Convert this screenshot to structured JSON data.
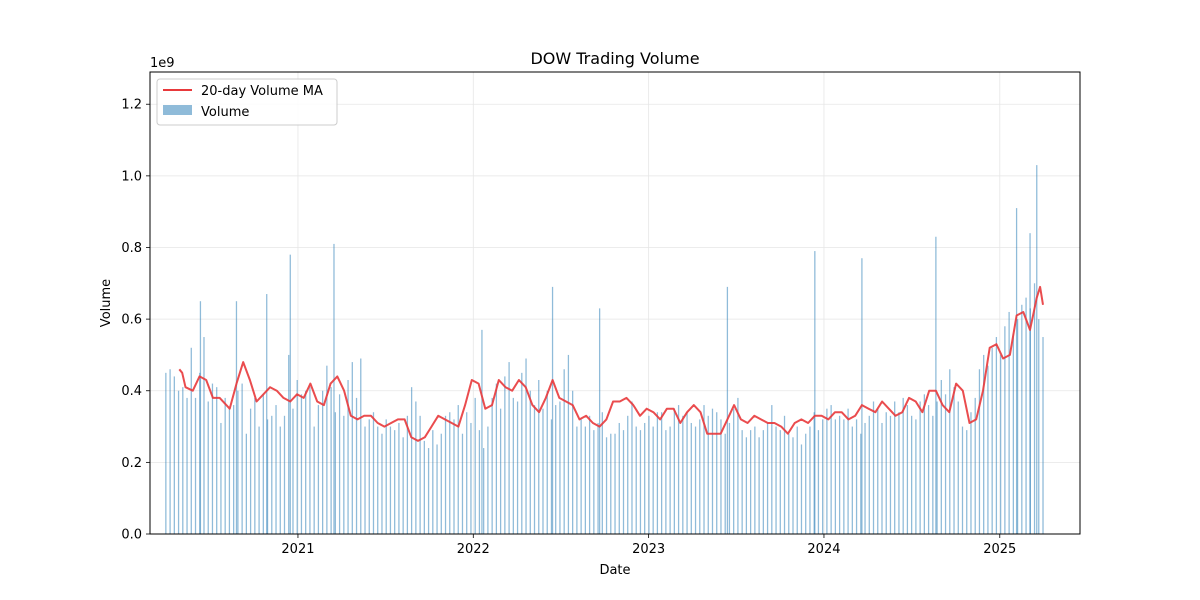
{
  "chart_data": {
    "type": "bar",
    "title": "DOW Trading Volume",
    "xlabel": "Date",
    "ylabel": "Volume",
    "y_offset_label": "1e9",
    "x_tick_labels": [
      "2021",
      "2022",
      "2023",
      "2024",
      "2025"
    ],
    "y_tick_labels": [
      "0.0",
      "0.2",
      "0.4",
      "0.6",
      "0.8",
      "1.0",
      "1.2"
    ],
    "xlim": [
      "2020-02-28",
      "2025-06-17"
    ],
    "ylim": [
      0,
      1.29
    ],
    "grid": true,
    "legend_position": "top-left",
    "colors": {
      "bars": "#1f77b4",
      "ma_line": "#e8393b"
    },
    "series": [
      {
        "name": "Volume",
        "kind": "bar",
        "x_start": "2020-04-01",
        "x_end": "2025-04-01",
        "values_1e9": [
          0.45,
          0.46,
          0.44,
          0.4,
          0.41,
          0.38,
          0.52,
          0.38,
          0.45,
          0.55,
          0.37,
          0.42,
          0.41,
          0.31,
          0.38,
          0.35,
          0.36,
          0.4,
          0.42,
          0.28,
          0.35,
          0.38,
          0.3,
          0.39,
          0.32,
          0.33,
          0.36,
          0.3,
          0.33,
          0.5,
          0.35,
          0.43,
          0.39,
          0.4,
          0.41,
          0.3,
          0.36,
          0.4,
          0.47,
          0.41,
          0.34,
          0.39,
          0.33,
          0.43,
          0.48,
          0.38,
          0.49,
          0.3,
          0.32,
          0.34,
          0.3,
          0.28,
          0.32,
          0.3,
          0.29,
          0.31,
          0.27,
          0.33,
          0.41,
          0.37,
          0.33,
          0.26,
          0.24,
          0.29,
          0.25,
          0.28,
          0.33,
          0.34,
          0.32,
          0.36,
          0.28,
          0.34,
          0.31,
          0.38,
          0.29,
          0.24,
          0.3,
          0.38,
          0.42,
          0.35,
          0.44,
          0.48,
          0.38,
          0.37,
          0.45,
          0.49,
          0.4,
          0.36,
          0.43,
          0.35,
          0.4,
          0.32,
          0.36,
          0.37,
          0.46,
          0.5,
          0.4,
          0.3,
          0.32,
          0.3,
          0.33,
          0.29,
          0.31,
          0.34,
          0.27,
          0.28,
          0.28,
          0.31,
          0.29,
          0.33,
          0.37,
          0.3,
          0.29,
          0.31,
          0.33,
          0.3,
          0.34,
          0.34,
          0.29,
          0.3,
          0.35,
          0.36,
          0.33,
          0.34,
          0.31,
          0.3,
          0.32,
          0.36,
          0.33,
          0.35,
          0.34,
          0.32,
          0.28,
          0.31,
          0.35,
          0.38,
          0.29,
          0.27,
          0.29,
          0.3,
          0.27,
          0.29,
          0.31,
          0.36,
          0.3,
          0.29,
          0.33,
          0.28,
          0.27,
          0.3,
          0.25,
          0.28,
          0.3,
          0.34,
          0.29,
          0.32,
          0.35,
          0.36,
          0.32,
          0.33,
          0.32,
          0.35,
          0.3,
          0.32,
          0.28,
          0.31,
          0.33,
          0.37,
          0.35,
          0.31,
          0.34,
          0.33,
          0.37,
          0.34,
          0.38,
          0.36,
          0.33,
          0.32,
          0.37,
          0.39,
          0.36,
          0.33,
          0.37,
          0.43,
          0.39,
          0.46,
          0.41,
          0.37,
          0.3,
          0.29,
          0.34,
          0.38,
          0.46,
          0.5,
          0.47,
          0.52,
          0.55,
          0.5,
          0.58,
          0.62,
          0.56,
          0.6,
          0.64,
          0.66,
          0.63,
          0.7,
          0.6,
          0.55
        ]
      },
      {
        "name": "20-day Volume MA",
        "kind": "line",
        "points": [
          [
            "2020-04-29",
            0.46
          ],
          [
            "2020-05-05",
            0.45
          ],
          [
            "2020-05-12",
            0.41
          ],
          [
            "2020-05-27",
            0.4
          ],
          [
            "2020-06-10",
            0.44
          ],
          [
            "2020-06-24",
            0.43
          ],
          [
            "2020-07-08",
            0.38
          ],
          [
            "2020-07-22",
            0.38
          ],
          [
            "2020-08-12",
            0.35
          ],
          [
            "2020-08-26",
            0.42
          ],
          [
            "2020-09-09",
            0.48
          ],
          [
            "2020-09-23",
            0.43
          ],
          [
            "2020-10-07",
            0.37
          ],
          [
            "2020-10-21",
            0.39
          ],
          [
            "2020-11-04",
            0.41
          ],
          [
            "2020-11-18",
            0.4
          ],
          [
            "2020-12-02",
            0.38
          ],
          [
            "2020-12-16",
            0.37
          ],
          [
            "2020-12-30",
            0.39
          ],
          [
            "2021-01-13",
            0.38
          ],
          [
            "2021-01-27",
            0.42
          ],
          [
            "2021-02-10",
            0.37
          ],
          [
            "2021-02-24",
            0.36
          ],
          [
            "2021-03-10",
            0.42
          ],
          [
            "2021-03-24",
            0.44
          ],
          [
            "2021-04-07",
            0.4
          ],
          [
            "2021-04-21",
            0.33
          ],
          [
            "2021-05-05",
            0.32
          ],
          [
            "2021-05-19",
            0.33
          ],
          [
            "2021-06-02",
            0.33
          ],
          [
            "2021-06-16",
            0.31
          ],
          [
            "2021-06-30",
            0.3
          ],
          [
            "2021-07-14",
            0.31
          ],
          [
            "2021-07-28",
            0.32
          ],
          [
            "2021-08-11",
            0.32
          ],
          [
            "2021-08-25",
            0.27
          ],
          [
            "2021-09-08",
            0.26
          ],
          [
            "2021-09-22",
            0.27
          ],
          [
            "2021-10-06",
            0.3
          ],
          [
            "2021-10-20",
            0.33
          ],
          [
            "2021-11-03",
            0.32
          ],
          [
            "2021-11-17",
            0.31
          ],
          [
            "2021-12-01",
            0.3
          ],
          [
            "2021-12-15",
            0.36
          ],
          [
            "2021-12-29",
            0.43
          ],
          [
            "2022-01-12",
            0.42
          ],
          [
            "2022-01-26",
            0.35
          ],
          [
            "2022-02-09",
            0.36
          ],
          [
            "2022-02-23",
            0.43
          ],
          [
            "2022-03-09",
            0.41
          ],
          [
            "2022-03-23",
            0.4
          ],
          [
            "2022-04-06",
            0.43
          ],
          [
            "2022-04-20",
            0.41
          ],
          [
            "2022-05-04",
            0.36
          ],
          [
            "2022-05-18",
            0.34
          ],
          [
            "2022-06-01",
            0.38
          ],
          [
            "2022-06-15",
            0.43
          ],
          [
            "2022-06-29",
            0.38
          ],
          [
            "2022-07-13",
            0.37
          ],
          [
            "2022-07-27",
            0.36
          ],
          [
            "2022-08-10",
            0.32
          ],
          [
            "2022-08-24",
            0.33
          ],
          [
            "2022-09-07",
            0.31
          ],
          [
            "2022-09-21",
            0.3
          ],
          [
            "2022-10-05",
            0.32
          ],
          [
            "2022-10-19",
            0.37
          ],
          [
            "2022-11-02",
            0.37
          ],
          [
            "2022-11-16",
            0.38
          ],
          [
            "2022-11-30",
            0.36
          ],
          [
            "2022-12-14",
            0.33
          ],
          [
            "2022-12-28",
            0.35
          ],
          [
            "2023-01-11",
            0.34
          ],
          [
            "2023-01-25",
            0.32
          ],
          [
            "2023-02-08",
            0.35
          ],
          [
            "2023-02-22",
            0.35
          ],
          [
            "2023-03-08",
            0.31
          ],
          [
            "2023-03-22",
            0.34
          ],
          [
            "2023-04-05",
            0.36
          ],
          [
            "2023-04-19",
            0.34
          ],
          [
            "2023-05-03",
            0.28
          ],
          [
            "2023-05-17",
            0.28
          ],
          [
            "2023-05-31",
            0.28
          ],
          [
            "2023-06-14",
            0.32
          ],
          [
            "2023-06-28",
            0.36
          ],
          [
            "2023-07-12",
            0.32
          ],
          [
            "2023-07-26",
            0.31
          ],
          [
            "2023-08-09",
            0.33
          ],
          [
            "2023-08-23",
            0.32
          ],
          [
            "2023-09-06",
            0.31
          ],
          [
            "2023-09-20",
            0.31
          ],
          [
            "2023-10-04",
            0.3
          ],
          [
            "2023-10-18",
            0.28
          ],
          [
            "2023-11-01",
            0.31
          ],
          [
            "2023-11-15",
            0.32
          ],
          [
            "2023-11-29",
            0.31
          ],
          [
            "2023-12-13",
            0.33
          ],
          [
            "2023-12-27",
            0.33
          ],
          [
            "2024-01-10",
            0.32
          ],
          [
            "2024-01-24",
            0.34
          ],
          [
            "2024-02-07",
            0.34
          ],
          [
            "2024-02-21",
            0.32
          ],
          [
            "2024-03-06",
            0.33
          ],
          [
            "2024-03-20",
            0.36
          ],
          [
            "2024-04-03",
            0.35
          ],
          [
            "2024-04-17",
            0.34
          ],
          [
            "2024-05-01",
            0.37
          ],
          [
            "2024-05-15",
            0.35
          ],
          [
            "2024-05-29",
            0.33
          ],
          [
            "2024-06-12",
            0.34
          ],
          [
            "2024-06-26",
            0.38
          ],
          [
            "2024-07-10",
            0.37
          ],
          [
            "2024-07-24",
            0.34
          ],
          [
            "2024-08-07",
            0.4
          ],
          [
            "2024-08-21",
            0.4
          ],
          [
            "2024-09-04",
            0.36
          ],
          [
            "2024-09-18",
            0.34
          ],
          [
            "2024-10-02",
            0.42
          ],
          [
            "2024-10-16",
            0.4
          ],
          [
            "2024-10-30",
            0.31
          ],
          [
            "2024-11-13",
            0.32
          ],
          [
            "2024-11-27",
            0.4
          ],
          [
            "2024-12-11",
            0.52
          ],
          [
            "2024-12-25",
            0.53
          ],
          [
            "2025-01-08",
            0.49
          ],
          [
            "2025-01-22",
            0.5
          ],
          [
            "2025-02-05",
            0.61
          ],
          [
            "2025-02-19",
            0.62
          ],
          [
            "2025-03-05",
            0.57
          ],
          [
            "2025-03-19",
            0.66
          ],
          [
            "2025-03-26",
            0.69
          ],
          [
            "2025-04-01",
            0.64
          ]
        ]
      }
    ],
    "spikes": [
      [
        "2020-06-12",
        0.65
      ],
      [
        "2020-08-26",
        0.65
      ],
      [
        "2020-10-28",
        0.67
      ],
      [
        "2020-12-16",
        0.78
      ],
      [
        "2021-03-17",
        0.81
      ],
      [
        "2022-01-19",
        0.57
      ],
      [
        "2022-06-15",
        0.69
      ],
      [
        "2022-09-21",
        0.63
      ],
      [
        "2023-06-14",
        0.69
      ],
      [
        "2023-12-13",
        0.79
      ],
      [
        "2024-03-20",
        0.77
      ],
      [
        "2024-08-21",
        0.83
      ],
      [
        "2025-02-05",
        0.91
      ],
      [
        "2025-03-05",
        0.84
      ],
      [
        "2025-03-19",
        1.03
      ]
    ]
  }
}
